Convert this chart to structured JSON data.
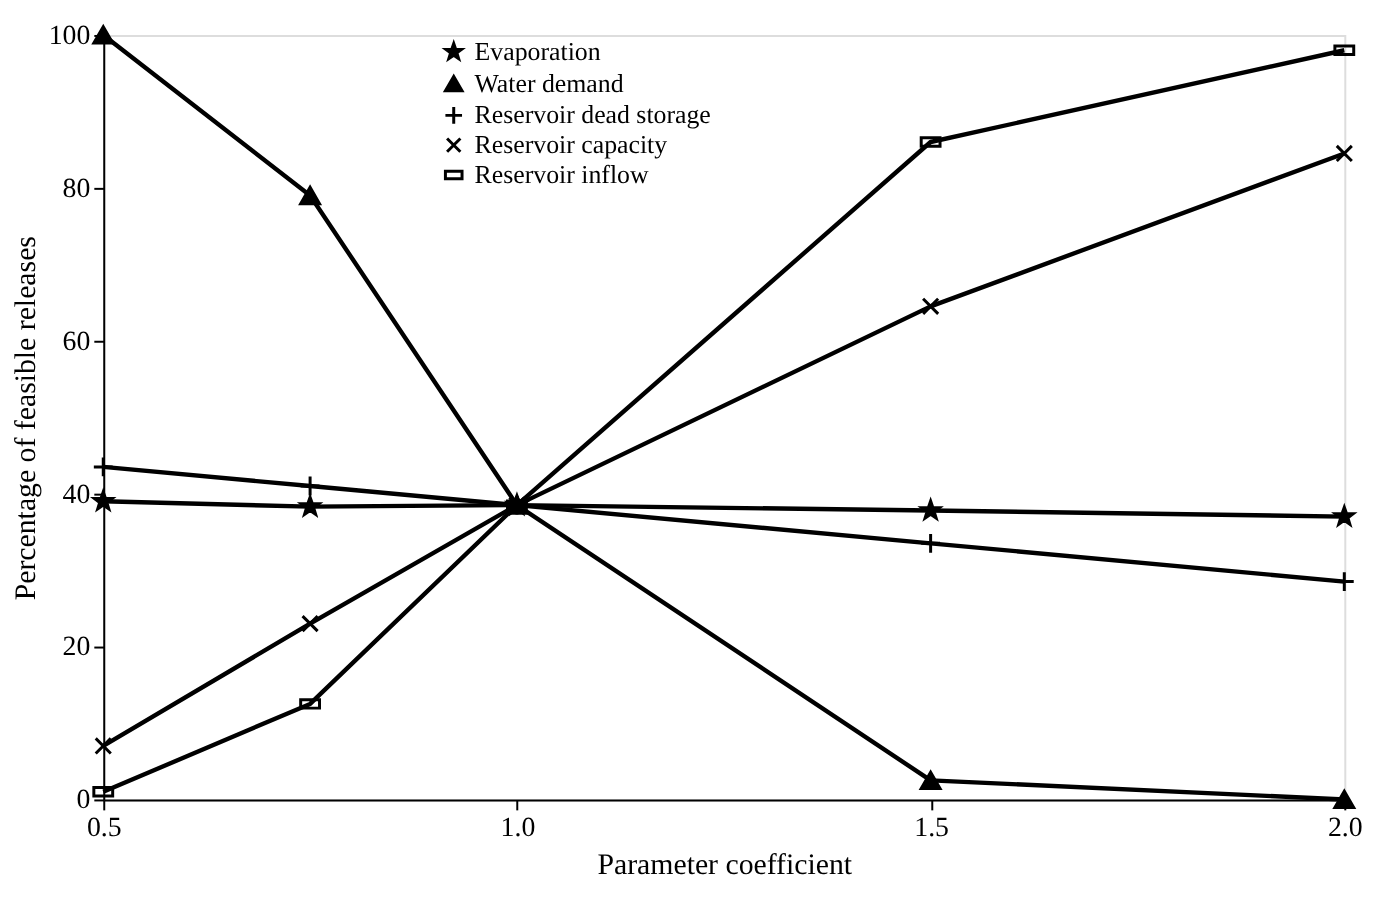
{
  "chart_data": {
    "type": "line",
    "xlabel": "Parameter coefficient",
    "ylabel": "Percentage of feasible releases",
    "x": [
      0.5,
      0.75,
      1,
      1.5,
      2
    ],
    "xlim": [
      0.5,
      2
    ],
    "xticks": [
      0.5,
      {
        "value": 1,
        "label": "1.0"
      },
      1.5,
      {
        "value": 2,
        "label": "2.0"
      }
    ],
    "ylim": [
      0,
      100
    ],
    "yticks": [
      0,
      20,
      40,
      60,
      80,
      100
    ],
    "grid": false,
    "legend": "top",
    "line_style": "solid",
    "series": [
      {
        "name": "Evaporation",
        "color": "#000000",
        "marker": "star",
        "values": [
          39,
          38.3,
          38.5,
          37.8,
          37
        ]
      },
      {
        "name": "Water demand",
        "color": "#000000",
        "marker": "triangle",
        "values": [
          100,
          79,
          38.5,
          2.5,
          0
        ]
      },
      {
        "name": "Reservoir dead storage",
        "color": "#000000",
        "marker": "plus",
        "values": [
          43.5,
          41,
          38.5,
          33.5,
          28.5
        ]
      },
      {
        "name": "Reservoir capacity",
        "color": "#000000",
        "marker": "cross",
        "values": [
          7,
          23,
          38.5,
          64.5,
          84.5
        ]
      },
      {
        "name": "Reservoir inflow",
        "color": "#000000",
        "marker": "square",
        "values": [
          1,
          12.5,
          38.5,
          86,
          98
        ]
      }
    ]
  }
}
